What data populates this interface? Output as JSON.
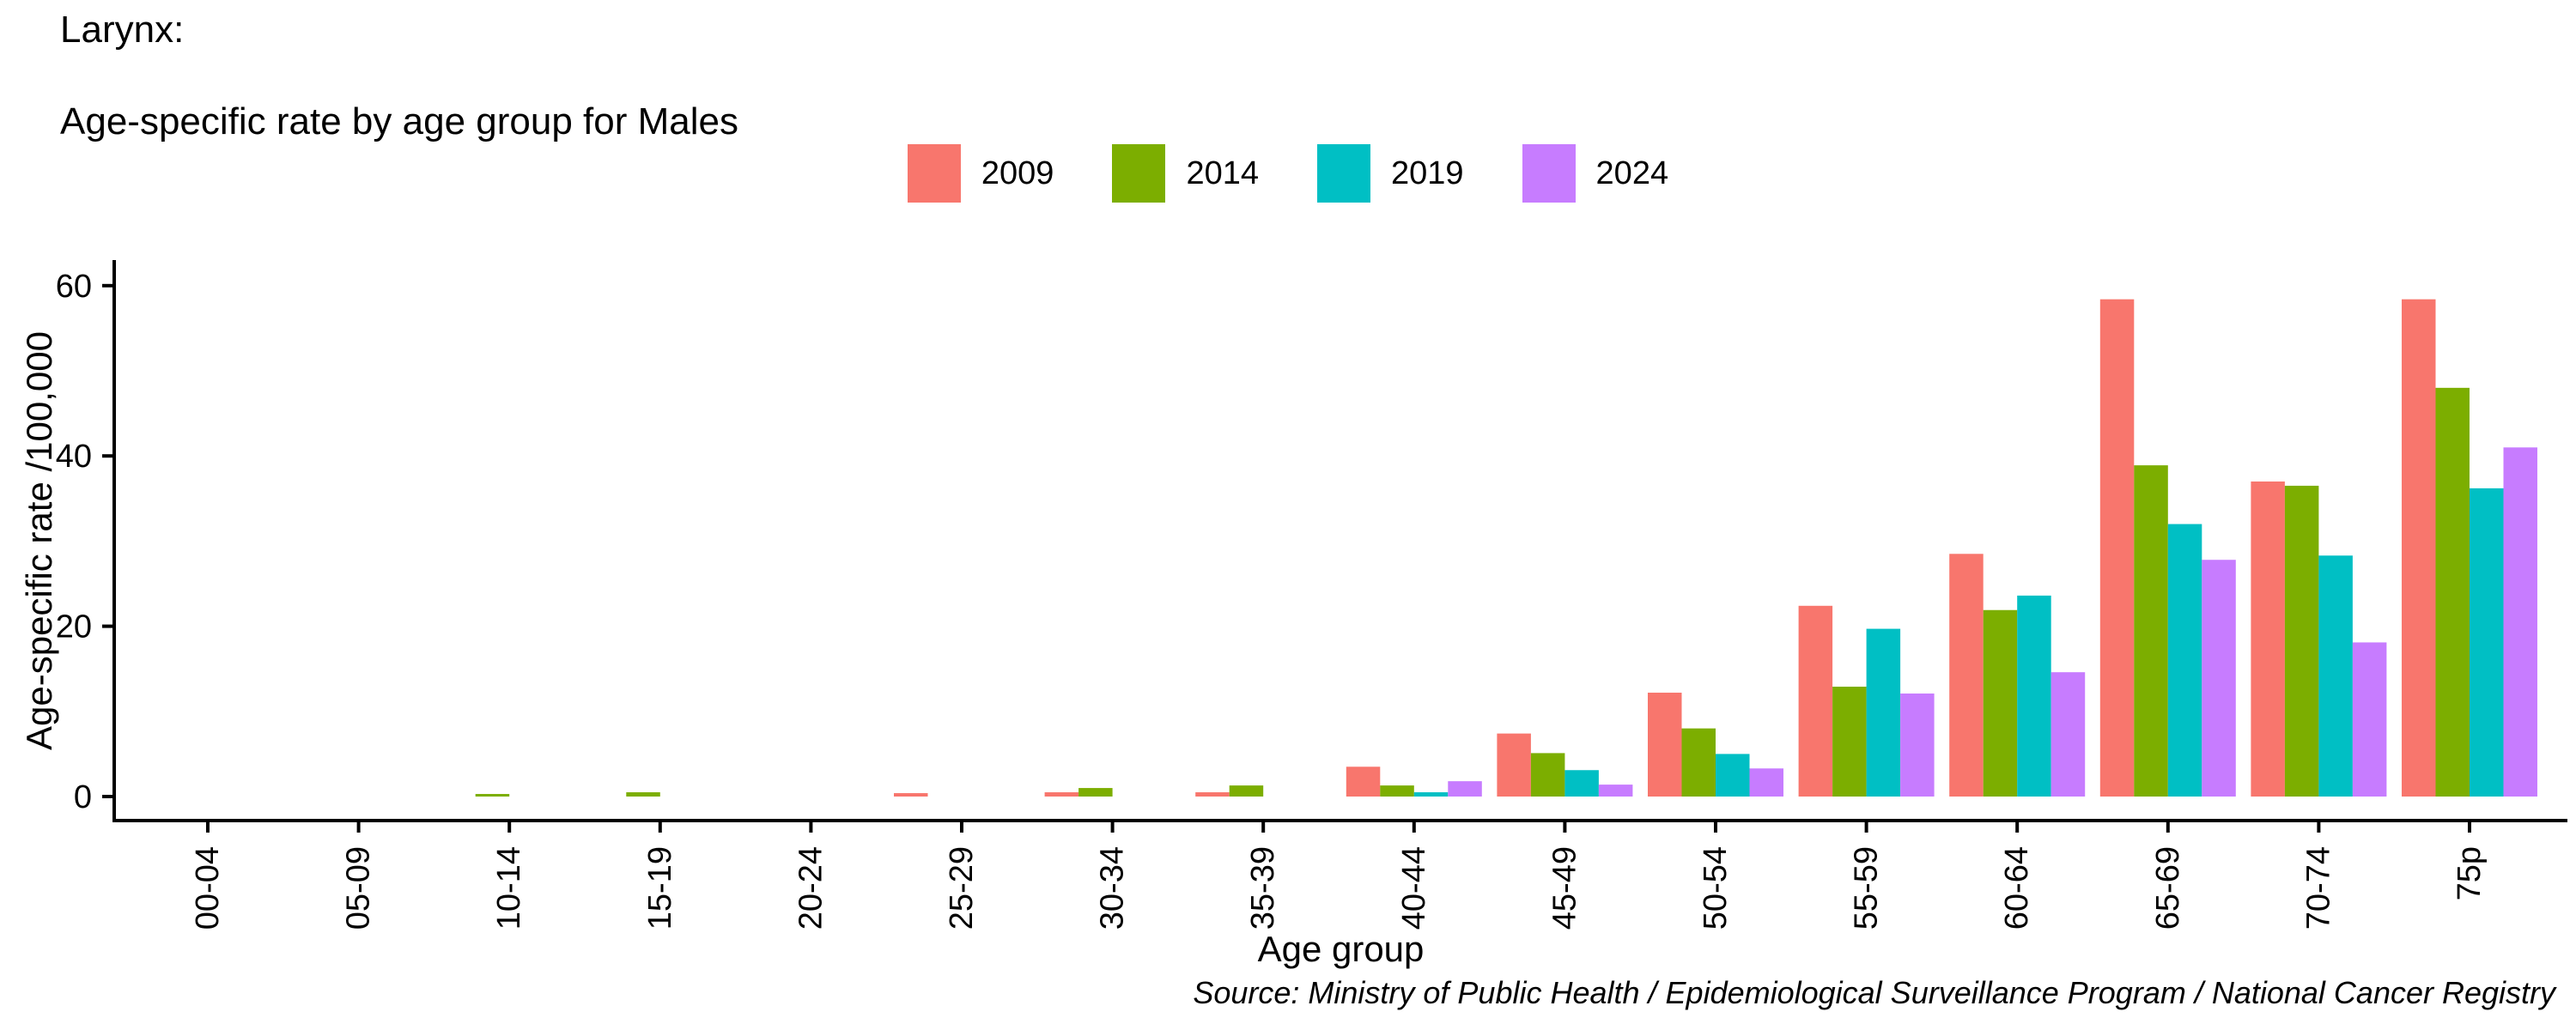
{
  "chart_data": {
    "type": "bar",
    "title_lines": [
      "Larynx:",
      "Age-specific rate by age group for Males"
    ],
    "title": "Larynx: Age-specific rate by age group for Males",
    "xlabel": "Age group",
    "ylabel": "Age-specific rate /100,000",
    "categories": [
      "00-04",
      "05-09",
      "10-14",
      "15-19",
      "20-24",
      "25-29",
      "30-34",
      "35-39",
      "40-44",
      "45-49",
      "50-54",
      "55-59",
      "60-64",
      "65-69",
      "70-74",
      "75p"
    ],
    "series": [
      {
        "name": "2009",
        "color": "#F8766D",
        "values": [
          0,
          0,
          0,
          0,
          0,
          0.4,
          0.5,
          0.5,
          3.5,
          7.4,
          12.2,
          22.4,
          28.5,
          58.4,
          37.0,
          58.4
        ]
      },
      {
        "name": "2014",
        "color": "#7CAE00",
        "values": [
          0,
          0,
          0.3,
          0.5,
          0,
          0,
          1.0,
          1.3,
          1.3,
          5.1,
          8.0,
          12.9,
          21.9,
          38.9,
          36.5,
          48.0
        ]
      },
      {
        "name": "2019",
        "color": "#00BFC4",
        "values": [
          0,
          0,
          0,
          0,
          0,
          0,
          0,
          0,
          0.5,
          3.1,
          5.0,
          19.7,
          23.6,
          32.0,
          28.3,
          36.2
        ]
      },
      {
        "name": "2024",
        "color": "#C77CFF",
        "values": [
          0,
          0,
          0,
          0,
          0,
          0,
          0,
          0,
          1.8,
          1.4,
          3.3,
          12.1,
          14.6,
          27.8,
          18.1,
          41.0
        ]
      }
    ],
    "yticks": [
      0,
      20,
      40,
      60
    ],
    "ylim": [
      0,
      60
    ],
    "grid": false,
    "legend_position": "top-center",
    "axis_color": "#000000",
    "source": "Source: Ministry of Public Health / Epidemiological Surveillance Program / National Cancer Registry"
  }
}
